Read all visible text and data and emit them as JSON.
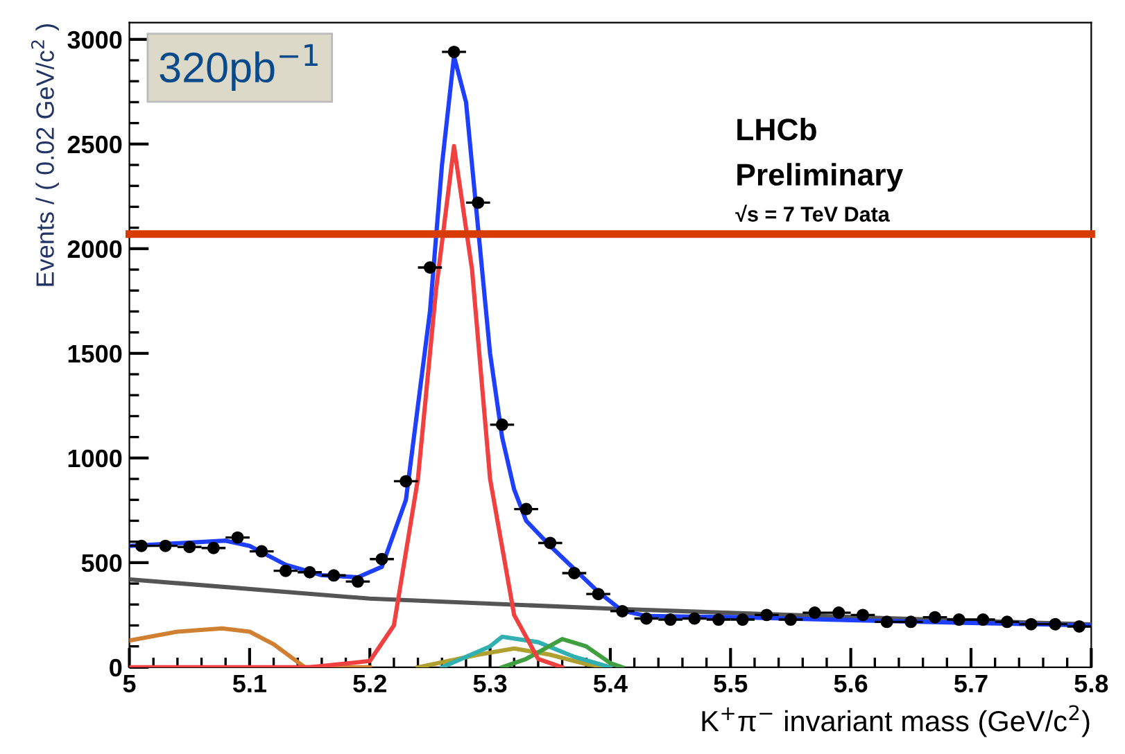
{
  "chart_data": {
    "type": "line",
    "xlabel": "K$^{+}$π$^{−}$ invariant mass (GeV/c$^{2}$)",
    "ylabel": "Events / ( 0.02 GeV/c$^{2}$ )",
    "annotations": [
      "320pb$^{−1}$",
      "LHCb",
      "Preliminary",
      "√s = 7 TeV Data"
    ],
    "xlim": [
      5,
      5.8
    ],
    "xticks": [
      5,
      5.1,
      5.2,
      5.3,
      5.4,
      5.5,
      5.6,
      5.7,
      5.8
    ],
    "ylim": [
      0,
      3080
    ],
    "yticks": [
      0,
      500,
      1000,
      1500,
      2000,
      2500,
      3000
    ],
    "grid": false,
    "marker": "none",
    "line_style": "solid",
    "ref_lines": [
      {
        "axis": "y",
        "value": 2070,
        "color": "#d83b01"
      }
    ],
    "series": [
      {
        "color": "#b0a030",
        "x": [
          5.24,
          5.29,
          5.32,
          5.35,
          5.38,
          5.4
        ],
        "values": [
          0,
          60,
          90,
          60,
          15,
          0
        ]
      },
      {
        "color": "#30b0b0",
        "x": [
          5.26,
          5.3,
          5.31,
          5.34,
          5.37,
          5.4
        ],
        "values": [
          0,
          100,
          146,
          120,
          50,
          0
        ]
      },
      {
        "color": "#40a040",
        "x": [
          5.31,
          5.33,
          5.36,
          5.38,
          5.4,
          5.41
        ],
        "values": [
          0,
          40,
          135,
          100,
          20,
          0
        ]
      },
      {
        "color": "#d08030",
        "x": [
          5.0,
          5.04,
          5.077,
          5.1,
          5.12,
          5.146,
          5.2
        ],
        "values": [
          128,
          170,
          186,
          170,
          110,
          0,
          0
        ]
      },
      {
        "color": "#555555",
        "x": [
          5.0,
          5.2,
          5.4,
          5.6,
          5.8
        ],
        "values": [
          420,
          328,
          280,
          240,
          205
        ]
      },
      {
        "color": "#f04040",
        "x": [
          5.0,
          5.15,
          5.2,
          5.22,
          5.24,
          5.255,
          5.27,
          5.285,
          5.3,
          5.32,
          5.34,
          5.36
        ],
        "values": [
          0,
          0,
          30,
          200,
          900,
          1800,
          2490,
          1900,
          900,
          250,
          40,
          0
        ]
      },
      {
        "color": "#1f3fff",
        "x": [
          5.0,
          5.08,
          5.1,
          5.13,
          5.16,
          5.19,
          5.21,
          5.23,
          5.25,
          5.26,
          5.27,
          5.28,
          5.29,
          5.3,
          5.31,
          5.32,
          5.33,
          5.35,
          5.37,
          5.39,
          5.41,
          5.43,
          5.5,
          5.6,
          5.7,
          5.8
        ],
        "values": [
          580,
          605,
          580,
          490,
          440,
          430,
          480,
          800,
          1700,
          2400,
          2920,
          2700,
          2100,
          1500,
          1100,
          850,
          700,
          580,
          470,
          360,
          270,
          245,
          240,
          225,
          212,
          200
        ]
      },
      {
        "type": "scatter",
        "color": "#000000",
        "marker": "circle",
        "x": [
          5.01,
          5.03,
          5.05,
          5.07,
          5.09,
          5.11,
          5.13,
          5.15,
          5.17,
          5.19,
          5.21,
          5.23,
          5.25,
          5.27,
          5.29,
          5.31,
          5.33,
          5.35,
          5.37,
          5.39,
          5.41,
          5.43,
          5.45,
          5.47,
          5.49,
          5.51,
          5.53,
          5.55,
          5.57,
          5.59,
          5.61,
          5.63,
          5.65,
          5.67,
          5.69,
          5.71,
          5.73,
          5.75,
          5.77,
          5.79
        ],
        "values": [
          580,
          580,
          575,
          570,
          620,
          554,
          461,
          454,
          439,
          410,
          517,
          889,
          1910,
          2940,
          2220,
          1159,
          756,
          594,
          450,
          350,
          268,
          233,
          228,
          233,
          228,
          228,
          250,
          228,
          261,
          261,
          250,
          217,
          217,
          239,
          228,
          228,
          217,
          206,
          206,
          195
        ],
        "xerrors": [
          0.01,
          0.01,
          0.01,
          0.01,
          0.01,
          0.01,
          0.01,
          0.01,
          0.01,
          0.01,
          0.01,
          0.01,
          0.01,
          0.01,
          0.01,
          0.01,
          0.01,
          0.01,
          0.01,
          0.01,
          0.01,
          0.01,
          0.01,
          0.01,
          0.01,
          0.01,
          0.01,
          0.01,
          0.01,
          0.01,
          0.01,
          0.01,
          0.01,
          0.01,
          0.01,
          0.01,
          0.01,
          0.01,
          0.01,
          0.01
        ]
      }
    ]
  }
}
